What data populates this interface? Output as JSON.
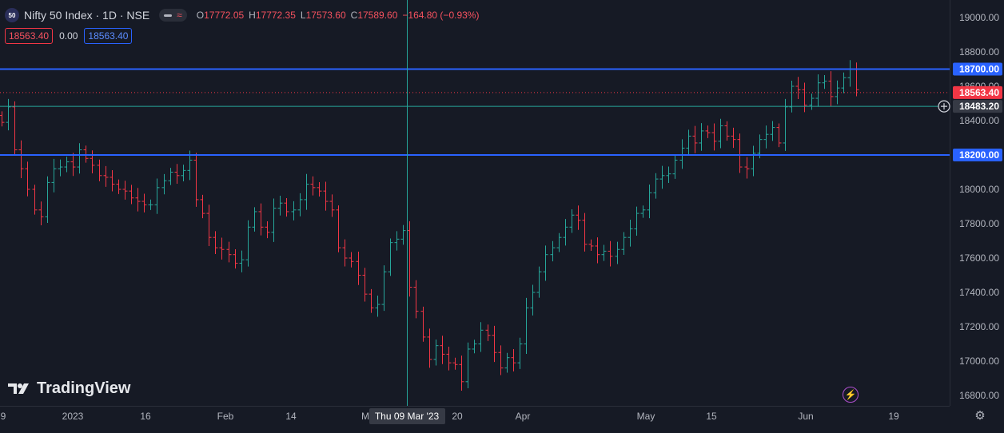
{
  "header": {
    "symbol_badge": "50",
    "title": "Nifty 50 Index · 1D · NSE",
    "ohlc": {
      "o_label": "O",
      "o": "17772.05",
      "h_label": "H",
      "h": "17772.35",
      "l_label": "L",
      "l": "17573.60",
      "c_label": "C",
      "c": "17589.60",
      "change": "−164.80 (−0.93%)"
    },
    "bid": "18563.40",
    "spread": "0.00",
    "ask": "18563.40"
  },
  "branding": {
    "logo_text": "TradingView"
  },
  "colors": {
    "background": "#161a25",
    "up": "#26a69a",
    "down": "#f23645",
    "hline": "#2962ff",
    "crosshair": "#26a69a",
    "grid_text": "#b2b5be"
  },
  "chart_data": {
    "type": "ohlc",
    "symbol": "Nifty 50 Index",
    "interval": "1D",
    "exchange": "NSE",
    "ylim": [
      16700,
      19100
    ],
    "y_ticks": [
      "19000.00",
      "18800.00",
      "18600.00",
      "18400.00",
      "18200.00",
      "18000.00",
      "17800.00",
      "17600.00",
      "17400.00",
      "17200.00",
      "17000.00",
      "16800.00"
    ],
    "x_ticks": [
      "9",
      "2023",
      "16",
      "Feb",
      "14",
      "M",
      "20",
      "Apr",
      "May",
      "15",
      "Jun",
      "19"
    ],
    "crosshair_label": "Thu 09 Mar '23",
    "price_labels": {
      "level_upper": "18700.00",
      "last_price": "18563.40",
      "crosshair_price": "18483.20",
      "level_lower": "18200.00"
    },
    "horizontal_lines": [
      18700,
      18200
    ],
    "last_price": 18563.4,
    "crosshair_price": 18483.2,
    "closes": [
      18390,
      18480,
      18230,
      18120,
      18000,
      17880,
      17840,
      18040,
      18120,
      18130,
      18160,
      18130,
      18230,
      18180,
      18140,
      18080,
      18070,
      18030,
      18000,
      17990,
      17950,
      17930,
      17910,
      17910,
      18010,
      18050,
      18100,
      18080,
      18110,
      18170,
      17940,
      17860,
      17720,
      17660,
      17650,
      17620,
      17570,
      17590,
      17780,
      17870,
      17780,
      17750,
      17890,
      17920,
      17870,
      17880,
      17940,
      18030,
      18010,
      17990,
      17930,
      17880,
      17660,
      17600,
      17580,
      17500,
      17390,
      17310,
      17330,
      17520,
      17690,
      17710,
      17760,
      17430,
      17290,
      17140,
      17010,
      17090,
      17040,
      16990,
      16980,
      16880,
      17070,
      17100,
      17180,
      17150,
      17050,
      16960,
      17020,
      16990,
      17100,
      17310,
      17400,
      17520,
      17620,
      17660,
      17720,
      17780,
      17850,
      17820,
      17680,
      17670,
      17620,
      17640,
      17610,
      17650,
      17720,
      17770,
      17860,
      17880,
      17980,
      18060,
      18080,
      18090,
      18170,
      18240,
      18310,
      18270,
      18340,
      18330,
      18280,
      18370,
      18310,
      18290,
      18130,
      18120,
      18210,
      18290,
      18320,
      18360,
      18270,
      18480,
      18600,
      18580,
      18490,
      18530,
      18620,
      18630,
      18540,
      18590,
      18650,
      18700,
      18580
    ]
  }
}
